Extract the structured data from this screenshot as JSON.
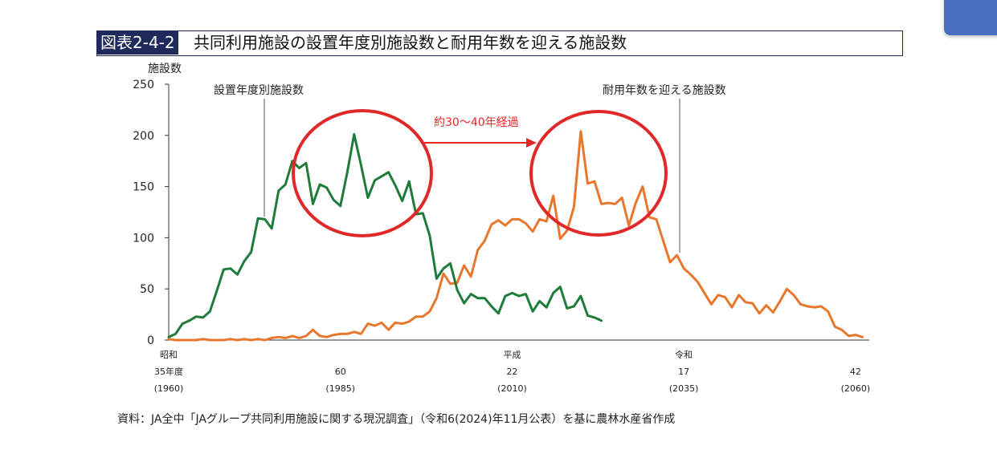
{
  "title": {
    "label": "図表2-4-2",
    "text": "共同利用施設の設置年度別施設数と耐用年数を迎える施設数"
  },
  "source": "資料：JA全中「JAグループ共同利用施設に関する現況調査」（令和6(2024)年11月公表）を基に農林水産省作成",
  "chart_data": {
    "type": "line",
    "ylabel": "施設数",
    "ylim": [
      0,
      250
    ],
    "yticks": [
      0,
      50,
      100,
      150,
      200,
      250
    ],
    "xlim": [
      1960,
      2062
    ],
    "xticks": [
      {
        "year": 1960,
        "lines": [
          "昭和",
          "35年度",
          "(1960)"
        ]
      },
      {
        "year": 1985,
        "lines": [
          "",
          "60",
          "(1985)"
        ]
      },
      {
        "year": 2010,
        "lines": [
          "平成",
          "22",
          "(2010)"
        ]
      },
      {
        "year": 2035,
        "lines": [
          "令和",
          "17",
          "(2035)"
        ]
      },
      {
        "year": 2060,
        "lines": [
          "",
          "42",
          "(2060)"
        ]
      }
    ],
    "series": [
      {
        "name": "設置年度別施設数",
        "color": "#1e7b3a",
        "x": [
          1960,
          1961,
          1962,
          1963,
          1964,
          1965,
          1966,
          1967,
          1968,
          1969,
          1970,
          1971,
          1972,
          1973,
          1974,
          1975,
          1976,
          1977,
          1978,
          1979,
          1980,
          1981,
          1982,
          1983,
          1984,
          1985,
          1986,
          1987,
          1988,
          1989,
          1990,
          1991,
          1992,
          1993,
          1994,
          1995,
          1996,
          1997,
          1998,
          1999,
          2000,
          2001,
          2002,
          2003,
          2004,
          2005,
          2006,
          2007,
          2008,
          2009,
          2010,
          2011,
          2012,
          2013,
          2014,
          2015,
          2016,
          2017,
          2018,
          2019,
          2020,
          2021,
          2022,
          2023
        ],
        "values": [
          3,
          6,
          16,
          19,
          23,
          22,
          28,
          48,
          69,
          70,
          64,
          77,
          86,
          119,
          118,
          109,
          146,
          152,
          175,
          168,
          173,
          133,
          152,
          149,
          137,
          131,
          164,
          201,
          171,
          139,
          156,
          160,
          164,
          151,
          136,
          155,
          123,
          124,
          102,
          60,
          70,
          75,
          49,
          36,
          45,
          41,
          41,
          33,
          26,
          43,
          46,
          43,
          45,
          28,
          38,
          32,
          46,
          52,
          31,
          33,
          43,
          24,
          22,
          19
        ]
      },
      {
        "name": "耐用年数を迎える施設数",
        "color": "#e8772e",
        "x": [
          1960,
          1961,
          1962,
          1963,
          1964,
          1965,
          1966,
          1967,
          1968,
          1969,
          1970,
          1971,
          1972,
          1973,
          1974,
          1975,
          1976,
          1977,
          1978,
          1979,
          1980,
          1981,
          1982,
          1983,
          1984,
          1985,
          1986,
          1987,
          1988,
          1989,
          1990,
          1991,
          1992,
          1993,
          1994,
          1995,
          1996,
          1997,
          1998,
          1999,
          2000,
          2001,
          2002,
          2003,
          2004,
          2005,
          2006,
          2007,
          2008,
          2009,
          2010,
          2011,
          2012,
          2013,
          2014,
          2015,
          2016,
          2017,
          2018,
          2019,
          2020,
          2021,
          2022,
          2023,
          2024,
          2025,
          2026,
          2027,
          2028,
          2029,
          2030,
          2031,
          2032,
          2033,
          2034,
          2035,
          2036,
          2037,
          2038,
          2039,
          2040,
          2041,
          2042,
          2043,
          2044,
          2045,
          2046,
          2047,
          2048,
          2049,
          2050,
          2051,
          2052,
          2053,
          2054,
          2055,
          2056,
          2057,
          2058,
          2059,
          2060,
          2061
        ],
        "values": [
          1,
          0,
          0,
          0,
          0,
          1,
          0,
          0,
          0,
          1,
          0,
          1,
          0,
          1,
          0,
          2,
          3,
          2,
          4,
          2,
          4,
          10,
          4,
          3,
          5,
          6,
          6,
          8,
          6,
          16,
          14,
          17,
          10,
          17,
          16,
          18,
          23,
          23,
          28,
          41,
          65,
          55,
          56,
          73,
          62,
          88,
          97,
          113,
          117,
          112,
          118,
          118,
          114,
          106,
          118,
          116,
          141,
          99,
          107,
          130,
          204,
          153,
          155,
          133,
          134,
          133,
          139,
          112,
          134,
          150,
          120,
          118,
          97,
          76,
          83,
          70,
          64,
          57,
          46,
          35,
          44,
          42,
          32,
          44,
          37,
          36,
          26,
          34,
          27,
          38,
          50,
          44,
          35,
          33,
          32,
          33,
          28,
          13,
          10,
          4,
          5,
          3
        ]
      }
    ],
    "annotations": {
      "series1_label": "設置年度別施設数",
      "series2_label": "耐用年数を迎える施設数",
      "arrow_label": "約30～40年経過"
    },
    "legend": "callout labels with leader lines",
    "grid": false
  }
}
